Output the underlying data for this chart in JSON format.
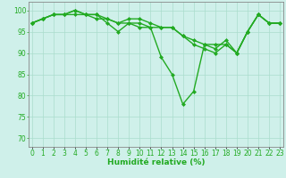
{
  "series": [
    [
      97,
      98,
      99,
      99,
      100,
      99,
      99,
      97,
      95,
      97,
      97,
      96,
      89,
      85,
      78,
      81,
      92,
      91,
      93,
      90,
      95,
      99,
      97,
      97
    ],
    [
      97,
      98,
      99,
      99,
      100,
      99,
      99,
      98,
      97,
      98,
      98,
      97,
      96,
      96,
      94,
      92,
      91,
      90,
      92,
      90,
      95,
      99,
      97,
      97
    ],
    [
      97,
      98,
      99,
      99,
      99,
      99,
      98,
      98,
      97,
      97,
      96,
      96,
      96,
      96,
      94,
      93,
      92,
      92,
      92,
      90,
      95,
      99,
      97,
      97
    ]
  ],
  "x": [
    0,
    1,
    2,
    3,
    4,
    5,
    6,
    7,
    8,
    9,
    10,
    11,
    12,
    13,
    14,
    15,
    16,
    17,
    18,
    19,
    20,
    21,
    22,
    23
  ],
  "line_color": "#22aa22",
  "marker": "D",
  "markersize": 2.0,
  "linewidth": 1.0,
  "xlim": [
    -0.3,
    23.3
  ],
  "ylim": [
    68,
    102
  ],
  "yticks": [
    70,
    75,
    80,
    85,
    90,
    95,
    100
  ],
  "xtick_labels": [
    "0",
    "1",
    "2",
    "3",
    "4",
    "5",
    "6",
    "7",
    "8",
    "9",
    "10",
    "11",
    "12",
    "13",
    "14",
    "15",
    "16",
    "17",
    "18",
    "19",
    "20",
    "21",
    "22",
    "23"
  ],
  "xlabel": "Humidité relative (%)",
  "xlabel_fontsize": 6.5,
  "xlabel_color": "#22aa22",
  "xlabel_bold": true,
  "bg_color": "#cff0ea",
  "grid_color": "#aaddcc",
  "tick_color": "#22aa22",
  "tick_fontsize": 5.5,
  "axis_color": "#888888"
}
